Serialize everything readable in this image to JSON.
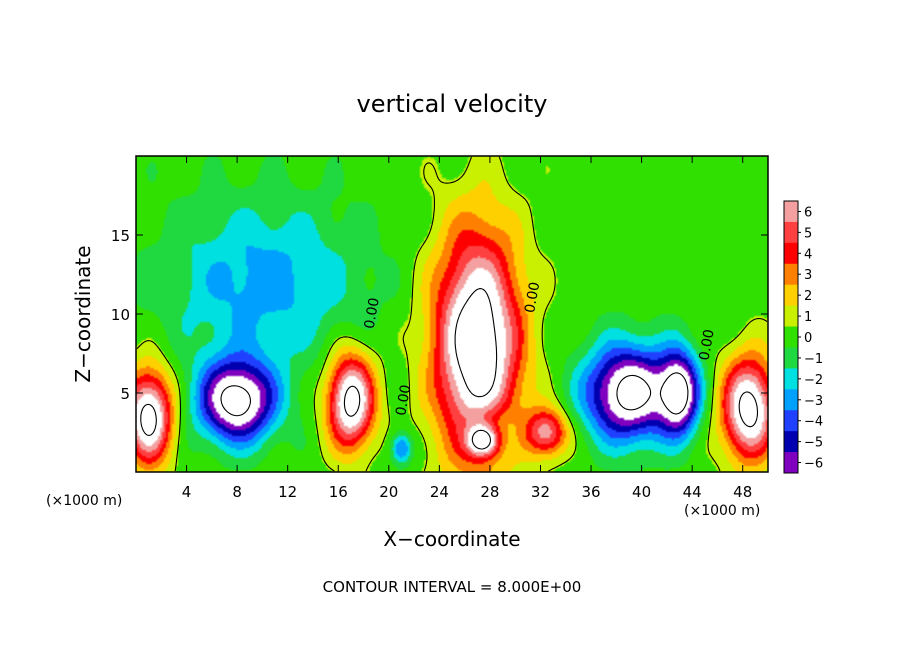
{
  "chart_data": {
    "type": "heatmap",
    "title": "vertical velocity",
    "xlabel": "X−coordinate",
    "ylabel": "Z−coordinate",
    "x_unit": "(×1000 m)",
    "y_unit": "(×1000 m)",
    "xlim": [
      0,
      50
    ],
    "ylim": [
      0,
      20
    ],
    "x_ticks": [
      4,
      8,
      12,
      16,
      20,
      24,
      28,
      32,
      36,
      40,
      44,
      48
    ],
    "x_tick_labels": [
      "4",
      "8",
      "12",
      "16",
      "20",
      "24",
      "28",
      "32",
      "36",
      "40",
      "44",
      "48"
    ],
    "y_ticks": [
      5,
      10,
      15
    ],
    "y_tick_labels": [
      "5",
      "10",
      "15"
    ],
    "colorbar": {
      "levels": [
        6,
        5,
        4,
        3,
        2,
        1,
        0,
        -1,
        -2,
        -3,
        -4,
        -5,
        -6
      ],
      "labels": [
        "6",
        "5",
        "4",
        "3",
        "2",
        "1",
        "0",
        "−1",
        "−2",
        "−3",
        "−4",
        "−5",
        "−6"
      ],
      "colors": [
        "#f4a0a0",
        "#ff4040",
        "#ff0000",
        "#ff8000",
        "#ffd000",
        "#c8f000",
        "#30e000",
        "#20d840",
        "#00e0e0",
        "#00a0ff",
        "#2040ff",
        "#0000b0",
        "#8000c0"
      ]
    },
    "contour_labels": [
      {
        "text": "0.00",
        "x": 19.0,
        "y": 10.0
      },
      {
        "text": "0.00",
        "x": 21.5,
        "y": 4.5
      },
      {
        "text": "0.00",
        "x": 31.7,
        "y": 11.0
      },
      {
        "text": "0.00",
        "x": 45.5,
        "y": 8.0
      }
    ],
    "features": [
      {
        "sign": "positive",
        "x": 1.0,
        "z": 3.5,
        "rx": 2.2,
        "rz": 3.5,
        "peak": 9
      },
      {
        "sign": "positive",
        "x": 17.0,
        "z": 4.5,
        "rx": 2.2,
        "rz": 3.5,
        "peak": 9
      },
      {
        "sign": "positive",
        "x": 27.0,
        "z": 8.0,
        "rx": 4.0,
        "rz": 8.5,
        "peak": 10
      },
      {
        "sign": "positive",
        "x": 27.5,
        "z": 2.0,
        "rx": 1.5,
        "rz": 1.2,
        "peak": 8
      },
      {
        "sign": "positive",
        "x": 32.5,
        "z": 2.5,
        "rx": 2.0,
        "rz": 1.8,
        "peak": 6
      },
      {
        "sign": "positive",
        "x": 48.5,
        "z": 4.0,
        "rx": 2.5,
        "rz": 3.8,
        "peak": 9
      },
      {
        "sign": "negative",
        "x": 8.0,
        "z": 4.5,
        "rx": 3.5,
        "rz": 3.0,
        "peak": 9
      },
      {
        "sign": "negative",
        "x": 10.0,
        "z": 12.0,
        "rx": 9.0,
        "rz": 6.0,
        "peak": 3
      },
      {
        "sign": "negative",
        "x": 39.0,
        "z": 5.0,
        "rx": 4.0,
        "rz": 3.5,
        "peak": 9
      },
      {
        "sign": "negative",
        "x": 43.0,
        "z": 5.0,
        "rx": 1.8,
        "rz": 3.0,
        "peak": 8
      },
      {
        "sign": "negative",
        "x": 21.0,
        "z": 1.5,
        "rx": 1.0,
        "rz": 1.2,
        "peak": 4
      },
      {
        "sign": "negative",
        "x": 28.0,
        "z": 2.5,
        "rx": 2.5,
        "rz": 2.0,
        "peak": 3
      }
    ]
  },
  "note": "CONTOUR INTERVAL =  8.000E+00"
}
